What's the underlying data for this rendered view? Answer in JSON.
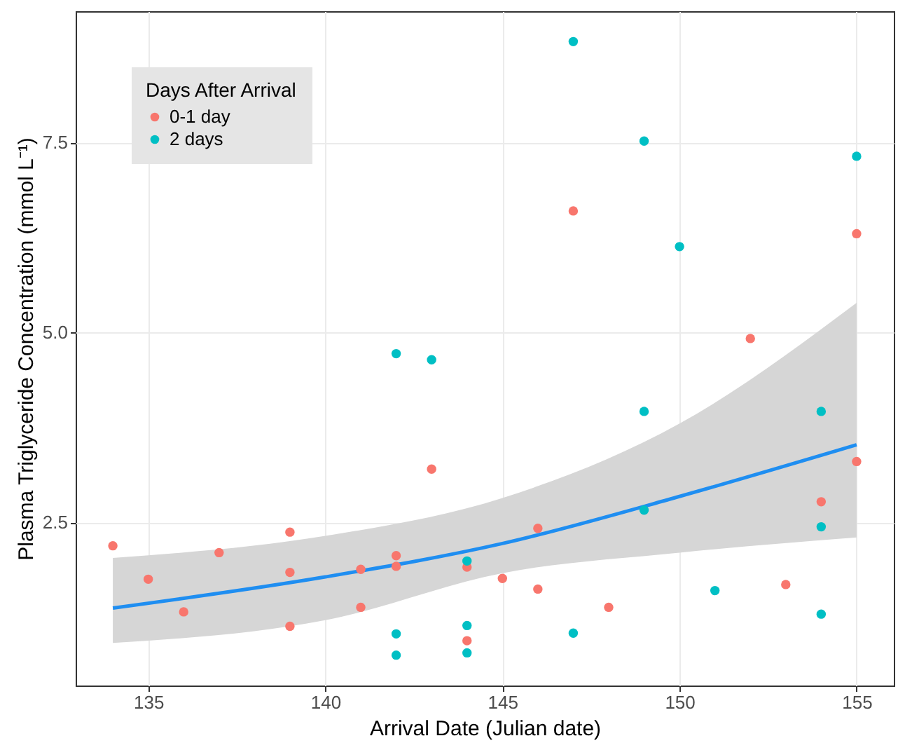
{
  "chart_data": {
    "type": "scatter",
    "xlabel": "Arrival Date (Julian date)",
    "ylabel": "Plasma Triglyceride Concentration (mmol L⁻¹)",
    "legend_title": "Days After Arrival",
    "legend": "top left",
    "grid": true,
    "marker": "circle",
    "xlim": [
      132.95,
      156.05
    ],
    "ylim": [
      0.35,
      9.23
    ],
    "xticks": [
      135,
      140,
      145,
      150,
      155
    ],
    "yticks": [
      2.5,
      {
        "value": 5,
        "label": "5.0"
      },
      7.5
    ],
    "series": [
      {
        "name": "0-1 day",
        "color": "#f8766d",
        "x": [
          134,
          135,
          136,
          137,
          139,
          139,
          139,
          141,
          141,
          142,
          142,
          143,
          144,
          144,
          145,
          146,
          146,
          148,
          153,
          154,
          155,
          147,
          155,
          152
        ],
        "values": [
          2.19,
          1.75,
          1.32,
          2.1,
          2.37,
          1.84,
          1.13,
          1.88,
          1.38,
          2.06,
          1.92,
          3.2,
          1.91,
          0.94,
          1.76,
          2.42,
          1.62,
          1.38,
          1.68,
          2.77,
          3.3,
          6.6,
          6.3,
          4.92
        ]
      },
      {
        "name": "2 days",
        "color": "#00bfc4",
        "x": [
          142,
          143,
          147,
          149,
          150,
          155,
          144,
          142,
          142,
          144,
          144,
          149,
          149,
          154,
          154,
          151,
          147,
          154
        ],
        "values": [
          4.72,
          4.64,
          8.83,
          7.52,
          6.13,
          7.32,
          1.99,
          1.03,
          0.75,
          1.14,
          0.78,
          3.96,
          2.66,
          3.96,
          2.44,
          1.6,
          1.04,
          1.29
        ]
      },
      {
        "type": "line",
        "marker": "none",
        "color": "#1f8ef1",
        "x": [
          134,
          140,
          145,
          150,
          155
        ],
        "values": [
          1.37,
          1.78,
          2.22,
          2.84,
          3.52
        ],
        "lower": [
          0.91,
          1.21,
          1.83,
          2.1,
          2.3
        ],
        "upper": [
          2.03,
          2.32,
          2.82,
          3.8,
          5.39
        ]
      }
    ]
  }
}
